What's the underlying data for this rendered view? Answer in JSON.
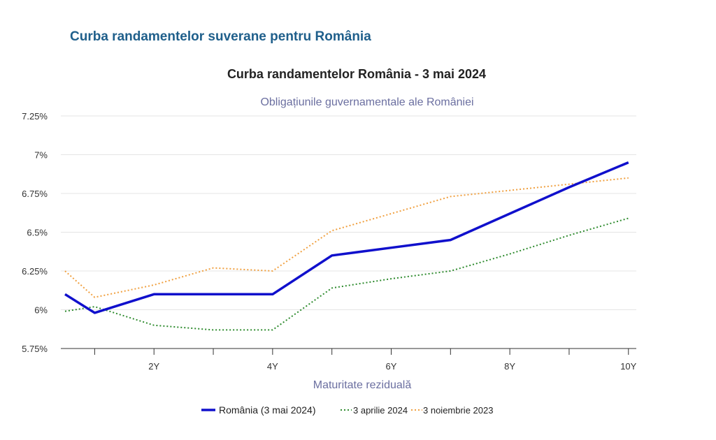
{
  "page": {
    "header": "Curba randamentelor suverane pentru România"
  },
  "colors": {
    "header": "#1f5f8b",
    "subtitle": "#6b6fa0"
  },
  "chart_data": {
    "type": "line",
    "title": "Curba randamentelor România - 3 mai 2024",
    "subtitle": "Obligațiunile guvernamentale ale României",
    "xlabel": "Maturitate reziduală",
    "ylabel": "",
    "xlim": [
      0.5,
      10.05
    ],
    "ylim": [
      5.75,
      7.25
    ],
    "x_ticks": [
      {
        "value": 2,
        "label": "2Y"
      },
      {
        "value": 4,
        "label": "4Y"
      },
      {
        "value": 6,
        "label": "6Y"
      },
      {
        "value": 8,
        "label": "8Y"
      },
      {
        "value": 10,
        "label": "10Y"
      }
    ],
    "x_minor_ticks": [
      1,
      3,
      5,
      7,
      9
    ],
    "y_ticks": [
      {
        "value": 5.75,
        "label": "5.75%"
      },
      {
        "value": 6.0,
        "label": "6%"
      },
      {
        "value": 6.25,
        "label": "6.25%"
      },
      {
        "value": 6.5,
        "label": "6.5%"
      },
      {
        "value": 6.75,
        "label": "6.75%"
      },
      {
        "value": 7.0,
        "label": "7%"
      },
      {
        "value": 7.25,
        "label": "7.25%"
      }
    ],
    "grid": true,
    "legend_position": "bottom",
    "series": [
      {
        "name": "România (3 mai 2024)",
        "color": "#1010cc",
        "style": "solid",
        "x": [
          0.5,
          1,
          2,
          3,
          4,
          5,
          6,
          7,
          8,
          9,
          10
        ],
        "y": [
          6.1,
          5.98,
          6.1,
          6.1,
          6.1,
          6.35,
          6.4,
          6.45,
          6.62,
          6.79,
          6.95
        ]
      },
      {
        "name": "3 aprilie 2024",
        "color": "#2e8b2e",
        "style": "dotted",
        "x": [
          0.5,
          1,
          2,
          3,
          4,
          5,
          6,
          7,
          8,
          9,
          10
        ],
        "y": [
          5.99,
          6.02,
          5.9,
          5.87,
          5.87,
          6.14,
          6.2,
          6.25,
          6.36,
          6.48,
          6.59
        ]
      },
      {
        "name": "3 noiembrie 2023",
        "color": "#f0a040",
        "style": "dotted",
        "x": [
          0.5,
          1,
          2,
          3,
          4,
          5,
          6,
          7,
          8,
          9,
          10
        ],
        "y": [
          6.25,
          6.08,
          6.16,
          6.27,
          6.25,
          6.51,
          6.62,
          6.73,
          6.77,
          6.81,
          6.85
        ]
      }
    ]
  }
}
